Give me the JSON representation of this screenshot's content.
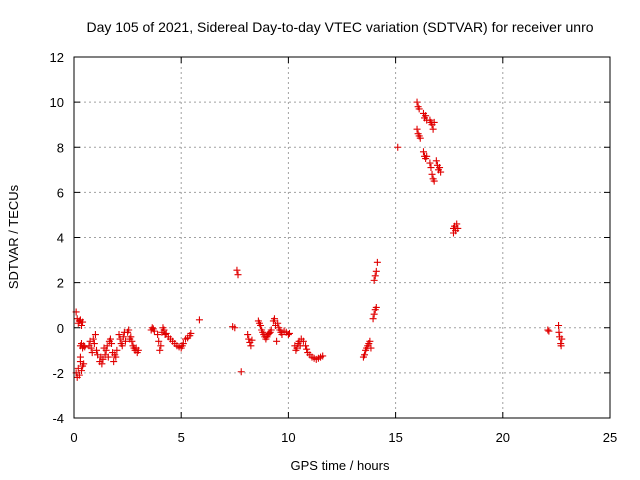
{
  "chart_data": {
    "type": "scatter",
    "title": "Day 105 of 2021, Sidereal Day-to-day VTEC variation (SDTVAR) for receiver unro",
    "xlabel": "GPS time / hours",
    "ylabel": "SDTVAR / TECUs",
    "xlim": [
      0,
      25
    ],
    "ylim": [
      -4,
      12
    ],
    "xticks": [
      0,
      5,
      10,
      15,
      20,
      25
    ],
    "yticks": [
      -4,
      -2,
      0,
      2,
      4,
      6,
      8,
      10,
      12
    ],
    "xtick_labels": [
      "0",
      "5",
      "10",
      "15",
      "20",
      "25"
    ],
    "ytick_labels": [
      "-4",
      "-2",
      "0",
      "2",
      "4",
      "6",
      "8",
      "10",
      "12"
    ],
    "grid": true,
    "marker": "plus",
    "color": "#e00000",
    "series": [
      {
        "name": "SDTVAR",
        "points": [
          [
            0.1,
            0.7
          ],
          [
            0.15,
            0.4
          ],
          [
            0.2,
            0.2
          ],
          [
            0.25,
            0.3
          ],
          [
            0.3,
            0.35
          ],
          [
            0.35,
            0.1
          ],
          [
            0.4,
            0.25
          ],
          [
            0.1,
            -2.0
          ],
          [
            0.15,
            -2.2
          ],
          [
            0.2,
            -1.8
          ],
          [
            0.25,
            -2.1
          ],
          [
            0.3,
            -1.5
          ],
          [
            0.35,
            -1.9
          ],
          [
            0.4,
            -1.7
          ],
          [
            0.45,
            -1.6
          ],
          [
            0.3,
            -1.3
          ],
          [
            0.3,
            -0.8
          ],
          [
            0.35,
            -0.7
          ],
          [
            0.4,
            -0.9
          ],
          [
            0.45,
            -0.8
          ],
          [
            0.5,
            -0.85
          ],
          [
            0.7,
            -0.8
          ],
          [
            0.75,
            -0.6
          ],
          [
            0.8,
            -0.9
          ],
          [
            0.85,
            -1.1
          ],
          [
            0.9,
            -0.5
          ],
          [
            0.95,
            -0.7
          ],
          [
            1.0,
            -0.3
          ],
          [
            1.05,
            -1.0
          ],
          [
            1.1,
            -1.2
          ],
          [
            1.2,
            -1.5
          ],
          [
            1.25,
            -1.3
          ],
          [
            1.3,
            -1.6
          ],
          [
            1.35,
            -1.4
          ],
          [
            1.4,
            -0.9
          ],
          [
            1.45,
            -1.2
          ],
          [
            1.5,
            -1.0
          ],
          [
            1.55,
            -0.8
          ],
          [
            1.6,
            -1.3
          ],
          [
            1.65,
            -0.6
          ],
          [
            1.7,
            -0.5
          ],
          [
            1.75,
            -0.7
          ],
          [
            1.8,
            -1.1
          ],
          [
            1.85,
            -1.5
          ],
          [
            1.9,
            -1.2
          ],
          [
            1.95,
            -1.3
          ],
          [
            2.0,
            -1.0
          ],
          [
            2.1,
            -0.3
          ],
          [
            2.15,
            -0.5
          ],
          [
            2.2,
            -0.7
          ],
          [
            2.25,
            -0.8
          ],
          [
            2.3,
            -0.4
          ],
          [
            2.35,
            -0.2
          ],
          [
            2.4,
            -0.6
          ],
          [
            2.5,
            -0.2
          ],
          [
            2.55,
            -0.1
          ],
          [
            2.6,
            -0.5
          ],
          [
            2.65,
            -0.4
          ],
          [
            2.7,
            -0.6
          ],
          [
            2.75,
            -0.8
          ],
          [
            2.8,
            -0.9
          ],
          [
            2.85,
            -1.0
          ],
          [
            2.9,
            -0.9
          ],
          [
            2.95,
            -1.1
          ],
          [
            3.0,
            -1.0
          ],
          [
            3.6,
            -0.1
          ],
          [
            3.65,
            0.0
          ],
          [
            3.7,
            -0.05
          ],
          [
            3.75,
            -0.15
          ],
          [
            3.9,
            -0.3
          ],
          [
            3.95,
            -0.6
          ],
          [
            4.0,
            -1.0
          ],
          [
            4.05,
            -0.8
          ],
          [
            4.1,
            -0.2
          ],
          [
            4.15,
            0.0
          ],
          [
            4.2,
            -0.1
          ],
          [
            4.25,
            -0.3
          ],
          [
            4.3,
            -0.25
          ],
          [
            4.4,
            -0.4
          ],
          [
            4.5,
            -0.5
          ],
          [
            4.6,
            -0.6
          ],
          [
            4.7,
            -0.7
          ],
          [
            4.8,
            -0.8
          ],
          [
            4.9,
            -0.85
          ],
          [
            5.0,
            -0.9
          ],
          [
            5.05,
            -0.8
          ],
          [
            5.1,
            -0.7
          ],
          [
            5.2,
            -0.5
          ],
          [
            5.3,
            -0.45
          ],
          [
            5.4,
            -0.35
          ],
          [
            5.45,
            -0.25
          ],
          [
            5.85,
            0.35
          ],
          [
            7.4,
            0.05
          ],
          [
            7.5,
            0.0
          ],
          [
            7.6,
            2.55
          ],
          [
            7.65,
            2.35
          ],
          [
            7.8,
            -1.95
          ],
          [
            8.1,
            -0.3
          ],
          [
            8.15,
            -0.5
          ],
          [
            8.2,
            -0.65
          ],
          [
            8.25,
            -0.8
          ],
          [
            8.3,
            -0.55
          ],
          [
            8.6,
            0.3
          ],
          [
            8.65,
            0.2
          ],
          [
            8.7,
            0.1
          ],
          [
            8.75,
            -0.1
          ],
          [
            8.8,
            -0.2
          ],
          [
            8.85,
            -0.3
          ],
          [
            8.9,
            -0.4
          ],
          [
            8.95,
            -0.5
          ],
          [
            9.0,
            -0.4
          ],
          [
            9.05,
            -0.3
          ],
          [
            9.1,
            -0.25
          ],
          [
            9.15,
            -0.2
          ],
          [
            9.2,
            -0.1
          ],
          [
            9.3,
            0.3
          ],
          [
            9.35,
            0.4
          ],
          [
            9.4,
            0.1
          ],
          [
            9.45,
            -0.6
          ],
          [
            9.5,
            0.2
          ],
          [
            9.55,
            0.0
          ],
          [
            9.6,
            -0.1
          ],
          [
            9.65,
            -0.2
          ],
          [
            9.7,
            -0.3
          ],
          [
            9.8,
            -0.15
          ],
          [
            9.9,
            -0.2
          ],
          [
            10.0,
            -0.3
          ],
          [
            10.05,
            -0.25
          ],
          [
            10.3,
            -0.8
          ],
          [
            10.35,
            -1.0
          ],
          [
            10.4,
            -0.9
          ],
          [
            10.45,
            -0.7
          ],
          [
            10.5,
            -0.6
          ],
          [
            10.55,
            -0.8
          ],
          [
            10.6,
            -0.5
          ],
          [
            10.7,
            -0.6
          ],
          [
            10.8,
            -0.8
          ],
          [
            10.85,
            -0.95
          ],
          [
            10.9,
            -1.1
          ],
          [
            11.0,
            -1.2
          ],
          [
            11.1,
            -1.3
          ],
          [
            11.2,
            -1.35
          ],
          [
            11.3,
            -1.4
          ],
          [
            11.4,
            -1.35
          ],
          [
            11.5,
            -1.3
          ],
          [
            11.6,
            -1.25
          ],
          [
            13.5,
            -1.3
          ],
          [
            13.55,
            -1.2
          ],
          [
            13.6,
            -1.0
          ],
          [
            13.65,
            -0.9
          ],
          [
            13.7,
            -0.8
          ],
          [
            13.75,
            -0.7
          ],
          [
            13.8,
            -0.6
          ],
          [
            13.85,
            -0.9
          ],
          [
            13.95,
            0.4
          ],
          [
            14.0,
            0.6
          ],
          [
            14.05,
            0.8
          ],
          [
            14.1,
            0.9
          ],
          [
            14.0,
            2.1
          ],
          [
            14.05,
            2.3
          ],
          [
            14.1,
            2.5
          ],
          [
            14.15,
            2.9
          ],
          [
            15.1,
            8.0
          ],
          [
            16.0,
            10.0
          ],
          [
            16.05,
            9.8
          ],
          [
            16.1,
            9.7
          ],
          [
            16.0,
            8.8
          ],
          [
            16.05,
            8.6
          ],
          [
            16.1,
            8.5
          ],
          [
            16.15,
            8.4
          ],
          [
            16.3,
            9.5
          ],
          [
            16.35,
            9.3
          ],
          [
            16.4,
            9.4
          ],
          [
            16.45,
            9.2
          ],
          [
            16.3,
            7.8
          ],
          [
            16.35,
            7.6
          ],
          [
            16.4,
            7.5
          ],
          [
            16.45,
            7.6
          ],
          [
            16.6,
            9.2
          ],
          [
            16.65,
            9.1
          ],
          [
            16.7,
            9.0
          ],
          [
            16.75,
            8.8
          ],
          [
            16.8,
            9.1
          ],
          [
            16.6,
            7.3
          ],
          [
            16.65,
            7.1
          ],
          [
            16.7,
            6.8
          ],
          [
            16.75,
            6.6
          ],
          [
            16.8,
            6.5
          ],
          [
            16.9,
            7.4
          ],
          [
            16.95,
            7.2
          ],
          [
            17.0,
            7.0
          ],
          [
            17.05,
            7.1
          ],
          [
            17.1,
            6.9
          ],
          [
            17.7,
            4.4
          ],
          [
            17.75,
            4.5
          ],
          [
            17.8,
            4.3
          ],
          [
            17.85,
            4.6
          ],
          [
            17.9,
            4.4
          ],
          [
            17.7,
            4.2
          ],
          [
            22.1,
            -0.1
          ],
          [
            22.15,
            -0.15
          ],
          [
            22.6,
            0.1
          ],
          [
            22.62,
            -0.2
          ],
          [
            22.65,
            -0.4
          ],
          [
            22.7,
            -0.7
          ],
          [
            22.72,
            -0.8
          ],
          [
            22.75,
            -0.5
          ]
        ]
      }
    ]
  }
}
